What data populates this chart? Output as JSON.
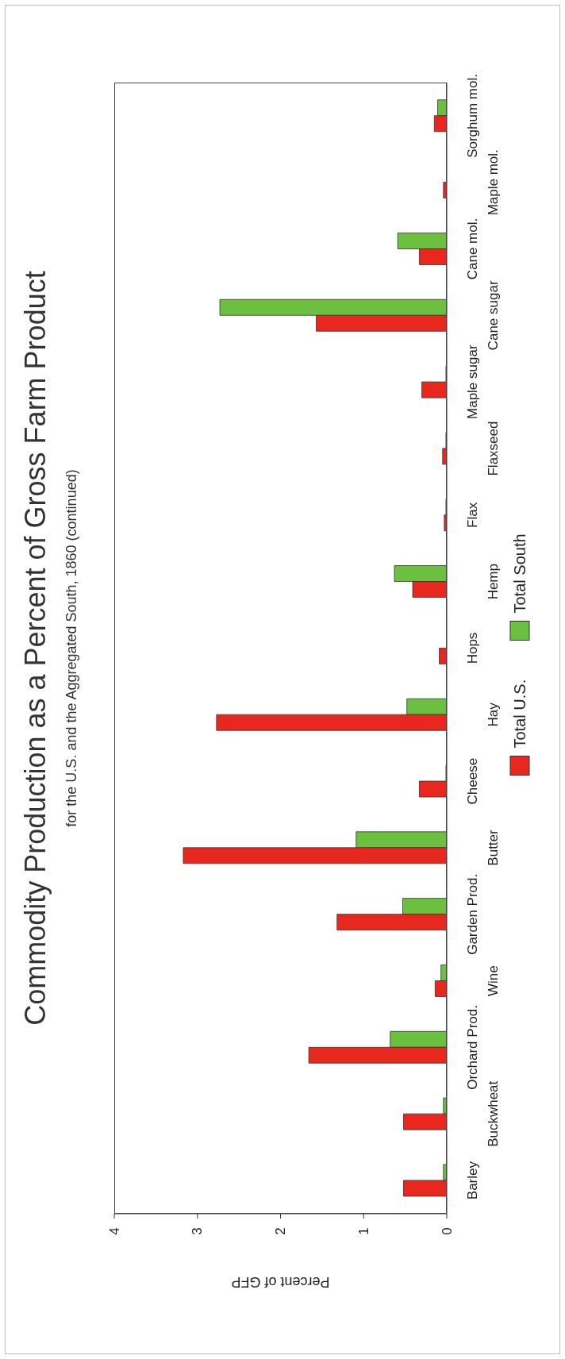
{
  "chart_data": {
    "type": "bar",
    "orientation": "horizontal",
    "title": "Commodity Production as a Percent of Gross Farm Product",
    "subtitle": "for the U.S. and the Aggregated South, 1860 (continued)",
    "xlabel": "Percent of GFP",
    "categories": [
      "Sorghum mol.",
      "Maple mol.",
      "Cane mol.",
      "Cane sugar",
      "Maple sugar",
      "Flaxseed",
      "Flax",
      "Hemp",
      "Hops",
      "Hay",
      "Cheese",
      "Butter",
      "Garden Prod.",
      "Wine",
      "Orchard Prod.",
      "Buckwheat",
      "Barley"
    ],
    "series": [
      {
        "name": "Total U.S.",
        "color": "#e8281e",
        "values": [
          0.15,
          0.04,
          0.33,
          1.57,
          0.3,
          0.05,
          0.03,
          0.41,
          0.09,
          2.77,
          0.33,
          3.17,
          1.32,
          0.14,
          1.66,
          0.52,
          0.52
        ]
      },
      {
        "name": "Total South",
        "color": "#6cc040",
        "values": [
          0.11,
          0,
          0.59,
          2.73,
          0.01,
          0.01,
          0.01,
          0.63,
          0,
          0.48,
          0.01,
          1.09,
          0.53,
          0.07,
          0.68,
          0.04,
          0.04
        ]
      }
    ],
    "xlim": [
      4,
      0
    ],
    "xticks": [
      4,
      3,
      2,
      1,
      0
    ],
    "grid": false,
    "legend": "right"
  }
}
